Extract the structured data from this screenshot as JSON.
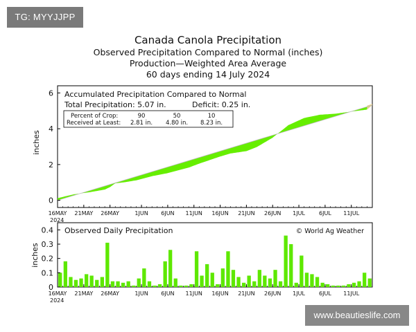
{
  "watermarks": {
    "top_left": "TG: MYYJJPP",
    "bottom_right": "www.beautieslife.com"
  },
  "colors": {
    "bar": "#5ee800",
    "band": "#66ee00",
    "forecast": "#e8cf8a",
    "frame": "#000000"
  },
  "chart_data": [
    {
      "type": "area",
      "title": "Canada Canola Precipitation",
      "subtitles": [
        "Observed Precipitation Compared to Normal (inches)",
        "Production—Weighted Area Average",
        "60 days ending 14 July 2024"
      ],
      "ylabel": "inches",
      "ylim": [
        -0.4,
        6.4
      ],
      "yticks": [
        0,
        2,
        4,
        6
      ],
      "box_title": "Accumulated Precipitation Compared to Normal",
      "total_label": "Total Precipitation: 5.07 in.",
      "deficit_label": "Deficit: 0.25 in.",
      "legend_rows": [
        [
          "Percent of Crop:",
          "90",
          "50",
          "10"
        ],
        [
          "Received at Least:",
          "2.81 in.",
          "4.80 in.",
          "8.23 in."
        ]
      ],
      "x_day_range": [
        0,
        60
      ],
      "normal_day_range": [
        0,
        60
      ],
      "normal_end": 5.32,
      "observed_day_range": [
        0,
        59
      ],
      "observed": [
        [
          0,
          0.12
        ],
        [
          3,
          0.33
        ],
        [
          6,
          0.45
        ],
        [
          9,
          0.6
        ],
        [
          10,
          0.74
        ],
        [
          11,
          0.95
        ],
        [
          13,
          1.02
        ],
        [
          15,
          1.12
        ],
        [
          18,
          1.35
        ],
        [
          21,
          1.52
        ],
        [
          25,
          1.83
        ],
        [
          27,
          2.05
        ],
        [
          31,
          2.45
        ],
        [
          33,
          2.62
        ],
        [
          36,
          2.75
        ],
        [
          38,
          2.98
        ],
        [
          41,
          3.5
        ],
        [
          44,
          4.2
        ],
        [
          47,
          4.6
        ],
        [
          50,
          4.78
        ],
        [
          53,
          4.84
        ],
        [
          55,
          4.92
        ],
        [
          59,
          5.07
        ]
      ],
      "x_ticks": [
        "16MAY",
        "21MAY",
        "26MAY",
        "1JUN",
        "6JUN",
        "11JUN",
        "16JUN",
        "21JUN",
        "26JUN",
        "1JUL",
        "6JUL",
        "11JUL"
      ],
      "x_tick_days": [
        0,
        5,
        10,
        16,
        21,
        26,
        31,
        36,
        41,
        46,
        51,
        56
      ],
      "year_label": "2024"
    },
    {
      "type": "bar",
      "title": "Observed Daily Precipitation",
      "credit": "© World Ag Weather",
      "ylabel": "inches",
      "ylim": [
        0,
        0.45
      ],
      "yticks": [
        0,
        0.1,
        0.2,
        0.3,
        0.4
      ],
      "ytick_labels": [
        "0",
        "0.1",
        "0.2",
        "0.3",
        "0.4"
      ],
      "values": [
        0.1,
        0.18,
        0.07,
        0.05,
        0.06,
        0.09,
        0.08,
        0.05,
        0.07,
        0.31,
        0.04,
        0.04,
        0.03,
        0.04,
        0.01,
        0.06,
        0.13,
        0.04,
        0.01,
        0.02,
        0.18,
        0.26,
        0.06,
        0.01,
        0.01,
        0.02,
        0.25,
        0.08,
        0.16,
        0.1,
        0.02,
        0.13,
        0.25,
        0.12,
        0.07,
        0.03,
        0.08,
        0.04,
        0.12,
        0.08,
        0.06,
        0.12,
        0.04,
        0.36,
        0.3,
        0.03,
        0.22,
        0.1,
        0.09,
        0.07,
        0.03,
        0.02,
        0.01,
        0.01,
        0.01,
        0.02,
        0.03,
        0.04,
        0.1,
        0.06
      ],
      "x_ticks": [
        "16MAY",
        "21MAY",
        "26MAY",
        "1JUN",
        "6JUN",
        "11JUN",
        "16JUN",
        "21JUN",
        "26JUN",
        "1JUL",
        "6JUL",
        "11JUL"
      ],
      "x_tick_days": [
        0,
        5,
        10,
        16,
        21,
        26,
        31,
        36,
        41,
        46,
        51,
        56
      ],
      "year_label": "2024"
    }
  ]
}
